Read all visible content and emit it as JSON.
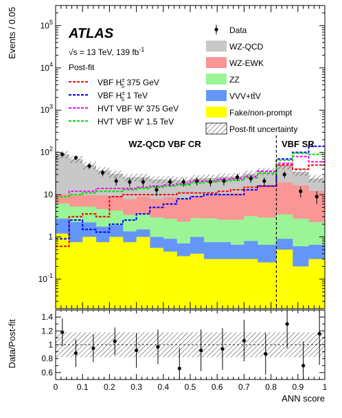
{
  "colors": {
    "wzqcd": "#c8c8c8",
    "wzewk": "#fa9696",
    "zz": "#9bf596",
    "vvv": "#6496fa",
    "fake": "#ffff00",
    "sig_red": "#ff0000",
    "sig_blue": "#0000ff",
    "sig_magenta": "#ff00ff",
    "sig_green": "#00e000"
  },
  "chart_data": {
    "type": "bar",
    "experiment": "ATLAS",
    "energy_label": "√s = 13 TeV, 139 fb",
    "energy_sup": "-1",
    "fit_label": "Post-fit",
    "xlabel": "ANN score",
    "ylabel": "Events / 0.05",
    "ratio_ylabel": "Data/Post-fit",
    "xlim": [
      0,
      1
    ],
    "ylim": [
      0.02,
      300000
    ],
    "ratio_ylim": [
      0.5,
      1.5
    ],
    "yscale": "log",
    "x_ticks": [
      "0",
      "0.1",
      "0.2",
      "0.3",
      "0.4",
      "0.5",
      "0.6",
      "0.7",
      "0.8",
      "0.9",
      "1"
    ],
    "ratio_ticks": [
      "0.6",
      "0.8",
      "1",
      "1.2",
      "1.4"
    ],
    "region_cr": "WZ-QCD VBF CR",
    "region_sr": "VBF SR",
    "region_boundary": 0.82,
    "bin_edges": [
      0,
      0.05,
      0.1,
      0.15,
      0.2,
      0.25,
      0.3,
      0.35,
      0.4,
      0.45,
      0.5,
      0.55,
      0.6,
      0.65,
      0.7,
      0.75,
      0.82,
      0.88,
      0.94,
      1.0
    ],
    "stack": [
      {
        "key": "fake",
        "name": "Fake/non-prompt",
        "values": [
          1.2,
          0.75,
          1.0,
          0.75,
          1.0,
          0.75,
          1.0,
          0.55,
          0.45,
          0.35,
          0.4,
          0.3,
          0.3,
          0.3,
          0.3,
          0.25,
          0.5,
          0.2,
          0.3
        ]
      },
      {
        "key": "vvv",
        "name": "VVV+tt̄V",
        "values": [
          1.5,
          1.5,
          1.2,
          1.0,
          0.9,
          0.6,
          0.5,
          0.45,
          0.45,
          0.35,
          0.6,
          0.45,
          0.45,
          0.35,
          0.5,
          0.4,
          0.4,
          0.4,
          0.35
        ]
      },
      {
        "key": "zz",
        "name": "ZZ",
        "values": [
          3.5,
          3.0,
          3.0,
          2.8,
          2.3,
          2.0,
          2.0,
          1.9,
          1.8,
          1.6,
          1.8,
          2.0,
          1.8,
          1.9,
          2.3,
          2.2,
          2.5,
          2.1,
          1.6
        ]
      },
      {
        "key": "wzewk",
        "name": "WZ-EWK",
        "values": [
          4.0,
          4.5,
          4.5,
          5.0,
          5.0,
          4.5,
          5.5,
          5.0,
          6.0,
          5.5,
          6.5,
          7.0,
          8.0,
          8.5,
          10.0,
          13.0,
          16.0,
          14.0,
          10.0
        ]
      },
      {
        "key": "wzqcd",
        "name": "WZ-QCD",
        "values": [
          80,
          60,
          40,
          28,
          22,
          18,
          17,
          15,
          14,
          14,
          15,
          15,
          16,
          16,
          18,
          20,
          30,
          18,
          12
        ]
      }
    ],
    "uncertainty_label": "Post-fit uncertainty",
    "uncertainty_frac": 0.2,
    "data": {
      "name": "Data",
      "x": [
        0.025,
        0.075,
        0.125,
        0.175,
        0.225,
        0.275,
        0.325,
        0.375,
        0.425,
        0.475,
        0.525,
        0.575,
        0.625,
        0.675,
        0.725,
        0.775,
        0.85,
        0.91,
        0.97
      ],
      "y": [
        90,
        75,
        48,
        33,
        21,
        20,
        20,
        13,
        20,
        20,
        21,
        20,
        21,
        26,
        24,
        21,
        30,
        12,
        9
      ]
    },
    "signals": [
      {
        "name": "VBF H",
        "label_sup": "±",
        "label_sub": "5",
        "label_rest": "375 GeV",
        "color": "sig_red",
        "values": [
          0.6,
          3.0,
          3.5,
          3.0,
          9.0,
          10,
          10,
          10,
          10,
          11,
          11,
          11,
          12,
          13,
          15,
          16,
          50,
          40,
          50
        ]
      },
      {
        "name": "VBF H",
        "label_sup": "±",
        "label_sub": "5",
        "label_rest": "1 TeV",
        "color": "sig_blue",
        "values": [
          0.9,
          2.5,
          1.5,
          1.3,
          2.0,
          2.5,
          3.5,
          5.0,
          6.0,
          8.0,
          9.0,
          10,
          10,
          10,
          13,
          16,
          70,
          100,
          140
        ]
      },
      {
        "name": "HVT VBF W' 375 GeV",
        "color": "sig_magenta",
        "values": [
          9.0,
          12,
          12,
          14,
          14,
          14,
          15,
          16,
          17,
          18,
          21,
          21,
          23,
          24,
          27,
          36,
          55,
          80,
          60
        ]
      },
      {
        "name": "HVT VBF W' 1.5 TeV",
        "color": "sig_green",
        "values": [
          9.0,
          10,
          11,
          12,
          12,
          13,
          14,
          15,
          16,
          17,
          19,
          20,
          21,
          22,
          25,
          32,
          65,
          95,
          90
        ]
      }
    ],
    "ratio": {
      "x": [
        0.025,
        0.075,
        0.14,
        0.22,
        0.3,
        0.38,
        0.46,
        0.54,
        0.62,
        0.7,
        0.78,
        0.86,
        0.92,
        0.98
      ],
      "y": [
        1.18,
        0.88,
        0.95,
        1.05,
        0.92,
        0.97,
        0.66,
        0.92,
        0.94,
        1.06,
        0.87,
        1.3,
        0.7,
        1.16
      ],
      "err": [
        0.2,
        0.2,
        0.2,
        0.2,
        0.25,
        0.25,
        0.3,
        0.3,
        0.3,
        0.3,
        0.3,
        0.35,
        0.35,
        0.45
      ]
    }
  }
}
